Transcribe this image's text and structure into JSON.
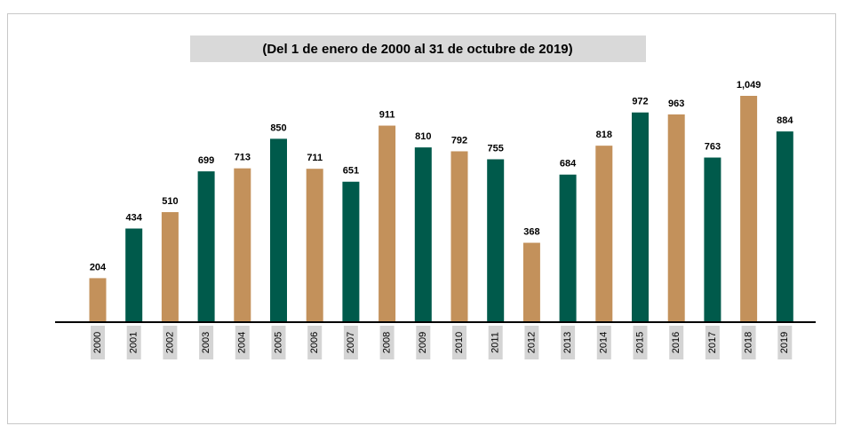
{
  "chart_data": {
    "type": "bar",
    "title": "(Del 1 de enero de 2000 al 31 de octubre de 2019)",
    "categories": [
      "2000",
      "2001",
      "2002",
      "2003",
      "2004",
      "2005",
      "2006",
      "2007",
      "2008",
      "2009",
      "2010",
      "2011",
      "2012",
      "2013",
      "2014",
      "2015",
      "2016",
      "2017",
      "2018",
      "2019"
    ],
    "values": [
      204,
      434,
      510,
      699,
      713,
      850,
      711,
      651,
      911,
      810,
      792,
      755,
      368,
      684,
      818,
      972,
      963,
      763,
      1049,
      884
    ],
    "value_labels": [
      "204",
      "434",
      "510",
      "699",
      "713",
      "850",
      "711",
      "651",
      "911",
      "810",
      "792",
      "755",
      "368",
      "684",
      "818",
      "972",
      "963",
      "763",
      "1,049",
      "884"
    ],
    "colors": [
      "#c3915b",
      "#005a4b",
      "#c3915b",
      "#005a4b",
      "#c3915b",
      "#005a4b",
      "#c3915b",
      "#005a4b",
      "#c3915b",
      "#005a4b",
      "#c3915b",
      "#005a4b",
      "#c3915b",
      "#005a4b",
      "#c3915b",
      "#005a4b",
      "#c3915b",
      "#005a4b",
      "#c3915b",
      "#005a4b"
    ]
  }
}
